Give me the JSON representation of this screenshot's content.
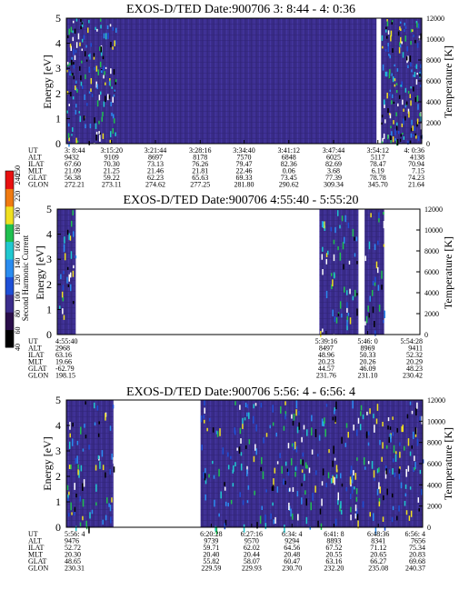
{
  "colors": {
    "background": "#3b2d8c",
    "colorbar": [
      "#000000",
      "#2a0e4a",
      "#3b2d8c",
      "#1e4fd6",
      "#2a8cf0",
      "#20c8d0",
      "#20c050",
      "#f0e020",
      "#f07a10",
      "#e81010"
    ]
  },
  "colorbar": {
    "label": "Second Harmonic Current",
    "ticks": [
      "40",
      "60",
      "80",
      "100",
      "120",
      "140",
      "160",
      "180",
      "200",
      "220",
      "240",
      "250"
    ]
  },
  "chart_data": [
    {
      "type": "heatmap",
      "title": "EXOS-D/TED   Date:900706  3: 8:44 - 4: 0:36",
      "ylabel": "Energy [eV]",
      "y2label": "Temperature [K]",
      "ylim": [
        0,
        5
      ],
      "y2lim": [
        0,
        12000
      ],
      "yticks": [
        "0",
        "1",
        "2",
        "3",
        "4",
        "5"
      ],
      "y2ticks": [
        "0",
        "2000",
        "4000",
        "6000",
        "8000",
        "10000",
        "12000"
      ],
      "row_labels": [
        "UT",
        "ALT",
        "ILAT",
        "MLT",
        "GLAT",
        "GLON"
      ],
      "columns": [
        [
          "3: 8:44",
          "9432",
          "67.60",
          "21.09",
          "56.38",
          "272.21"
        ],
        [
          "3:15:20",
          "9109",
          "70.30",
          "21.25",
          "59.22",
          "273.11"
        ],
        [
          "3:21:44",
          "8697",
          "73.13",
          "21.46",
          "62.23",
          "274.62"
        ],
        [
          "3:28:16",
          "8178",
          "76.26",
          "21.81",
          "65.63",
          "277.25"
        ],
        [
          "3:34:40",
          "7570",
          "79.47",
          "22.46",
          "69.33",
          "281.80"
        ],
        [
          "3:41:12",
          "6848",
          "82.36",
          "0.06",
          "73.45",
          "290.62"
        ],
        [
          "3:47:44",
          "6025",
          "82.69",
          "3.68",
          "77.39",
          "309.34"
        ],
        [
          "3:54:12",
          "5117",
          "78.47",
          "6.19",
          "78.78",
          "345.70"
        ],
        [
          "4: 0:36",
          "4138",
          "70.94",
          "7.15",
          "74.23",
          "21.64"
        ]
      ],
      "data_gaps": [
        [
          "3:54:00",
          "3:54:40"
        ]
      ]
    },
    {
      "type": "heatmap",
      "title": "EXOS-D/TED   Date:900706  4:55:40 - 5:55:20",
      "ylabel": "Energy [eV]",
      "y2label": "Temperature [K]",
      "ylim": [
        0,
        5
      ],
      "y2lim": [
        0,
        12000
      ],
      "yticks": [
        "0",
        "1",
        "2",
        "3",
        "4",
        "5"
      ],
      "y2ticks": [
        "0",
        "2000",
        "4000",
        "6000",
        "8000",
        "10000",
        "12000"
      ],
      "row_labels": [
        "UT",
        "ALT",
        "ILAT",
        "MLT",
        "GLAT",
        "GLON"
      ],
      "columns": [
        [
          "4:55:40",
          "2968",
          "63.16",
          "19.66",
          "-62.79",
          "198.15"
        ],
        [
          "5:39:16",
          "8497",
          "48.96",
          "20.23",
          "44.57",
          "231.76"
        ],
        [
          "5:46: 0",
          "8969",
          "50.33",
          "20.26",
          "46.09",
          "231.10"
        ],
        [
          "5:54:28",
          "9411",
          "52.32",
          "20.29",
          "48.23",
          "230.42"
        ]
      ],
      "data_spans": [
        [
          "4:55:40",
          "4:58:40"
        ],
        [
          "5:38:10",
          "5:44:30"
        ],
        [
          "5:45:30",
          "5:48:40"
        ]
      ]
    },
    {
      "type": "heatmap",
      "title": "EXOS-D/TED   Date:900706  5:56: 4 - 6:56: 4",
      "ylabel": "Energy [eV]",
      "y2label": "Temperature [K]",
      "ylim": [
        0,
        5
      ],
      "y2lim": [
        0,
        12000
      ],
      "yticks": [
        "0",
        "1",
        "2",
        "3",
        "4",
        "5"
      ],
      "y2ticks": [
        "0",
        "2000",
        "4000",
        "6000",
        "8000",
        "10000",
        "12000"
      ],
      "row_labels": [
        "UT",
        "ALT",
        "ILAT",
        "MLT",
        "GLAT",
        "GLON"
      ],
      "columns": [
        [
          "5:56: 4",
          "9476",
          "52.72",
          "20.30",
          "48.65",
          "230.31"
        ],
        [
          "6:20:28",
          "9739",
          "59.71",
          "20.40",
          "55.82",
          "229.59"
        ],
        [
          "6:27:16",
          "9570",
          "62.02",
          "20.44",
          "58.07",
          "229.93"
        ],
        [
          "6:34: 4",
          "9294",
          "64.56",
          "20.48",
          "60.47",
          "230.70"
        ],
        [
          "6:41: 8",
          "8893",
          "67.52",
          "20.55",
          "63.16",
          "232.20"
        ],
        [
          "6:48:36",
          "8341",
          "71.12",
          "20.65",
          "66.27",
          "235.08"
        ],
        [
          "6:56: 4",
          "7656",
          "75.34",
          "20.83",
          "69.68",
          "240.37"
        ]
      ],
      "data_spans": [
        [
          "5:56: 4",
          "6: 4:00"
        ],
        [
          "6:18:40",
          "6:56: 4"
        ]
      ]
    }
  ]
}
